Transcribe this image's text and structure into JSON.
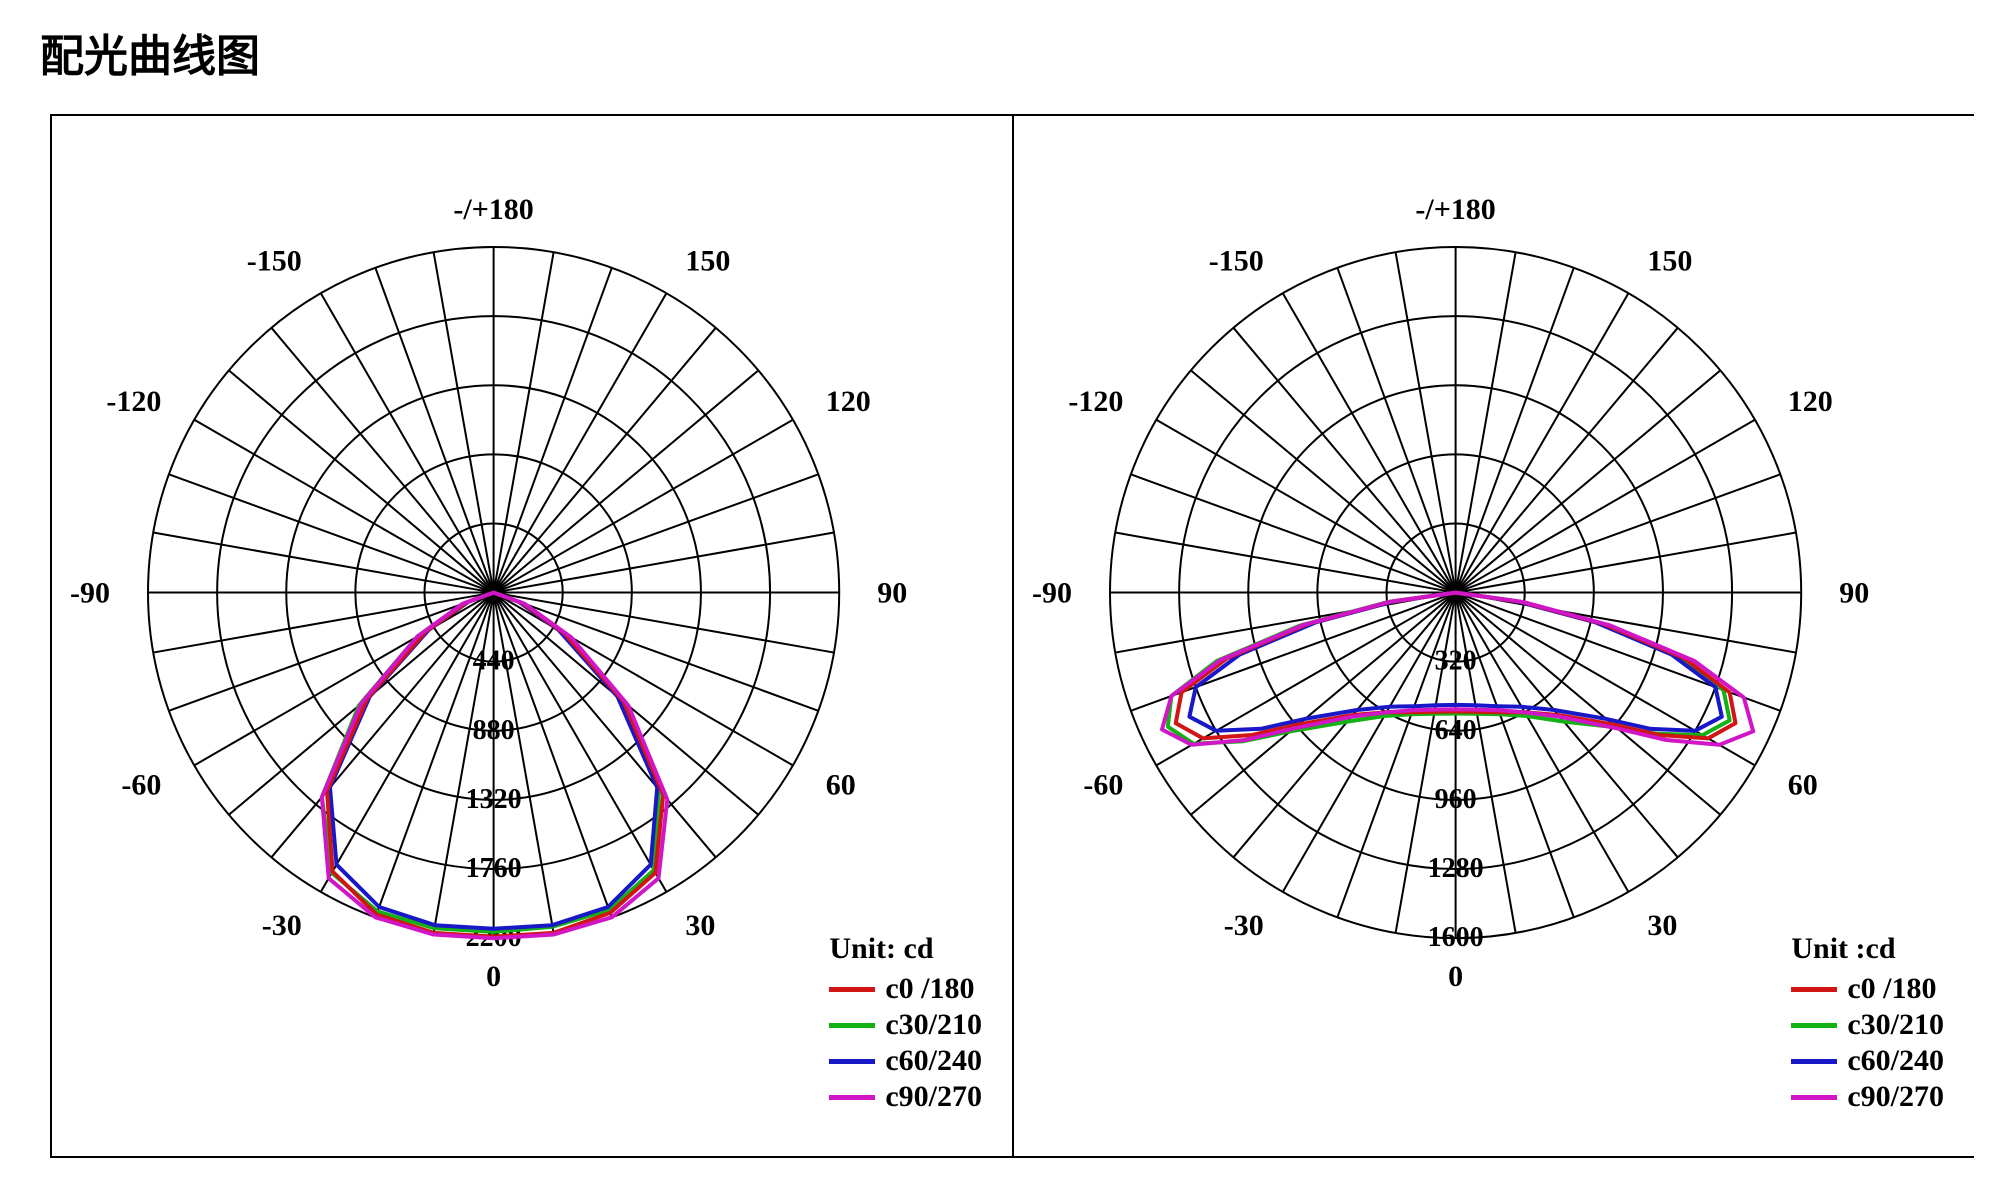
{
  "title": "配光曲线图",
  "background_color": "#ffffff",
  "border_color": "#000000",
  "grid_stroke": "#000000",
  "grid_stroke_width": 2,
  "label_font": "Times New Roman",
  "label_fontsize": 30,
  "label_weight": "bold",
  "angle_labels": [
    {
      "deg": 180,
      "text": "-/+180"
    },
    {
      "deg": 150,
      "text": "150"
    },
    {
      "deg": 120,
      "text": "120"
    },
    {
      "deg": 90,
      "text": "90"
    },
    {
      "deg": 60,
      "text": "60"
    },
    {
      "deg": 30,
      "text": "30"
    },
    {
      "deg": 0,
      "text": "0"
    },
    {
      "deg": -30,
      "text": "-30"
    },
    {
      "deg": -60,
      "text": "-60"
    },
    {
      "deg": -90,
      "text": "-90"
    },
    {
      "deg": -120,
      "text": "-120"
    },
    {
      "deg": -150,
      "text": "-150"
    }
  ],
  "spoke_step_deg": 10,
  "radial_rings": 5,
  "series_colors": {
    "c0": "#d11515",
    "c30": "#13b113",
    "c60": "#1818c8",
    "c90": "#d016c6"
  },
  "series_stroke_width": 4,
  "legend": {
    "unit_label": "Unit: cd",
    "unit_label_alt": "Unit :cd",
    "items": [
      {
        "key": "c0",
        "label": "c0 /180"
      },
      {
        "key": "c30",
        "label": "c30/210"
      },
      {
        "key": "c60",
        "label": "c60/240"
      },
      {
        "key": "c90",
        "label": "c90/270"
      }
    ]
  },
  "chart_left": {
    "type": "polar",
    "max_value": 2200,
    "ring_step": 440,
    "radial_labels": [
      "440",
      "880",
      "1320",
      "1760",
      "2200"
    ],
    "series": {
      "c0": [
        {
          "a": -90,
          "r": 0
        },
        {
          "a": -70,
          "r": 180
        },
        {
          "a": -60,
          "r": 500
        },
        {
          "a": -50,
          "r": 1050
        },
        {
          "a": -40,
          "r": 1650
        },
        {
          "a": -30,
          "r": 2050
        },
        {
          "a": -20,
          "r": 2180
        },
        {
          "a": -10,
          "r": 2200
        },
        {
          "a": 0,
          "r": 2190
        },
        {
          "a": 10,
          "r": 2200
        },
        {
          "a": 20,
          "r": 2170
        },
        {
          "a": 30,
          "r": 2060
        },
        {
          "a": 40,
          "r": 1680
        },
        {
          "a": 50,
          "r": 1080
        },
        {
          "a": 60,
          "r": 520
        },
        {
          "a": 70,
          "r": 190
        },
        {
          "a": 90,
          "r": 0
        }
      ],
      "c30": [
        {
          "a": -90,
          "r": 0
        },
        {
          "a": -70,
          "r": 200
        },
        {
          "a": -60,
          "r": 560
        },
        {
          "a": -50,
          "r": 1120
        },
        {
          "a": -40,
          "r": 1700
        },
        {
          "a": -30,
          "r": 2060
        },
        {
          "a": -20,
          "r": 2160
        },
        {
          "a": -10,
          "r": 2170
        },
        {
          "a": 0,
          "r": 2160
        },
        {
          "a": 10,
          "r": 2160
        },
        {
          "a": 20,
          "r": 2150
        },
        {
          "a": 30,
          "r": 2040
        },
        {
          "a": 40,
          "r": 1640
        },
        {
          "a": 50,
          "r": 1040
        },
        {
          "a": 60,
          "r": 500
        },
        {
          "a": 70,
          "r": 180
        },
        {
          "a": 90,
          "r": 0
        }
      ],
      "c60": [
        {
          "a": -90,
          "r": 0
        },
        {
          "a": -70,
          "r": 170
        },
        {
          "a": -60,
          "r": 480
        },
        {
          "a": -50,
          "r": 1030
        },
        {
          "a": -40,
          "r": 1620
        },
        {
          "a": -30,
          "r": 2000
        },
        {
          "a": -20,
          "r": 2130
        },
        {
          "a": -10,
          "r": 2150
        },
        {
          "a": 0,
          "r": 2140
        },
        {
          "a": 10,
          "r": 2150
        },
        {
          "a": 20,
          "r": 2130
        },
        {
          "a": 30,
          "r": 2000
        },
        {
          "a": 40,
          "r": 1620
        },
        {
          "a": 50,
          "r": 1030
        },
        {
          "a": 60,
          "r": 480
        },
        {
          "a": 70,
          "r": 170
        },
        {
          "a": 90,
          "r": 0
        }
      ],
      "c90": [
        {
          "a": -90,
          "r": 0
        },
        {
          "a": -70,
          "r": 210
        },
        {
          "a": -60,
          "r": 560
        },
        {
          "a": -50,
          "r": 1100
        },
        {
          "a": -40,
          "r": 1700
        },
        {
          "a": -30,
          "r": 2100
        },
        {
          "a": -20,
          "r": 2200
        },
        {
          "a": -10,
          "r": 2210
        },
        {
          "a": 0,
          "r": 2200
        },
        {
          "a": 10,
          "r": 2210
        },
        {
          "a": 20,
          "r": 2200
        },
        {
          "a": 30,
          "r": 2100
        },
        {
          "a": 40,
          "r": 1720
        },
        {
          "a": 50,
          "r": 1120
        },
        {
          "a": 60,
          "r": 570
        },
        {
          "a": 70,
          "r": 210
        },
        {
          "a": 90,
          "r": 0
        }
      ]
    }
  },
  "chart_right": {
    "type": "polar",
    "max_value": 1600,
    "ring_step": 320,
    "radial_labels": [
      "320",
      "640",
      "960",
      "1280",
      "1600"
    ],
    "series": {
      "c0": [
        {
          "a": -90,
          "r": 0
        },
        {
          "a": -82,
          "r": 300
        },
        {
          "a": -78,
          "r": 700
        },
        {
          "a": -74,
          "r": 1100
        },
        {
          "a": -70,
          "r": 1350
        },
        {
          "a": -65,
          "r": 1430
        },
        {
          "a": -60,
          "r": 1350
        },
        {
          "a": -55,
          "r": 1150
        },
        {
          "a": -50,
          "r": 950
        },
        {
          "a": -40,
          "r": 740
        },
        {
          "a": -30,
          "r": 640
        },
        {
          "a": -20,
          "r": 590
        },
        {
          "a": -10,
          "r": 560
        },
        {
          "a": 0,
          "r": 550
        },
        {
          "a": 10,
          "r": 560
        },
        {
          "a": 20,
          "r": 590
        },
        {
          "a": 30,
          "r": 640
        },
        {
          "a": 40,
          "r": 740
        },
        {
          "a": 50,
          "r": 950
        },
        {
          "a": 55,
          "r": 1150
        },
        {
          "a": 60,
          "r": 1350
        },
        {
          "a": 65,
          "r": 1430
        },
        {
          "a": 70,
          "r": 1350
        },
        {
          "a": 74,
          "r": 1100
        },
        {
          "a": 78,
          "r": 700
        },
        {
          "a": 82,
          "r": 300
        },
        {
          "a": 90,
          "r": 0
        }
      ],
      "c30": [
        {
          "a": -90,
          "r": 0
        },
        {
          "a": -82,
          "r": 320
        },
        {
          "a": -78,
          "r": 740
        },
        {
          "a": -74,
          "r": 1150
        },
        {
          "a": -70,
          "r": 1400
        },
        {
          "a": -65,
          "r": 1470
        },
        {
          "a": -60,
          "r": 1400
        },
        {
          "a": -55,
          "r": 1200
        },
        {
          "a": -50,
          "r": 1000
        },
        {
          "a": -40,
          "r": 780
        },
        {
          "a": -30,
          "r": 660
        },
        {
          "a": -20,
          "r": 600
        },
        {
          "a": -10,
          "r": 570
        },
        {
          "a": 0,
          "r": 560
        },
        {
          "a": 10,
          "r": 570
        },
        {
          "a": 20,
          "r": 600
        },
        {
          "a": 30,
          "r": 660
        },
        {
          "a": 40,
          "r": 780
        },
        {
          "a": 50,
          "r": 970
        },
        {
          "a": 55,
          "r": 1140
        },
        {
          "a": 60,
          "r": 1320
        },
        {
          "a": 65,
          "r": 1400
        },
        {
          "a": 70,
          "r": 1320
        },
        {
          "a": 74,
          "r": 1070
        },
        {
          "a": 78,
          "r": 680
        },
        {
          "a": 82,
          "r": 300
        },
        {
          "a": 90,
          "r": 0
        }
      ],
      "c60": [
        {
          "a": -90,
          "r": 0
        },
        {
          "a": -82,
          "r": 280
        },
        {
          "a": -78,
          "r": 660
        },
        {
          "a": -74,
          "r": 1040
        },
        {
          "a": -70,
          "r": 1280
        },
        {
          "a": -65,
          "r": 1360
        },
        {
          "a": -60,
          "r": 1280
        },
        {
          "a": -55,
          "r": 1100
        },
        {
          "a": -50,
          "r": 910
        },
        {
          "a": -40,
          "r": 710
        },
        {
          "a": -30,
          "r": 610
        },
        {
          "a": -20,
          "r": 560
        },
        {
          "a": -10,
          "r": 530
        },
        {
          "a": 0,
          "r": 520
        },
        {
          "a": 10,
          "r": 530
        },
        {
          "a": 20,
          "r": 560
        },
        {
          "a": 30,
          "r": 610
        },
        {
          "a": 40,
          "r": 710
        },
        {
          "a": 50,
          "r": 910
        },
        {
          "a": 55,
          "r": 1100
        },
        {
          "a": 60,
          "r": 1280
        },
        {
          "a": 65,
          "r": 1360
        },
        {
          "a": 70,
          "r": 1280
        },
        {
          "a": 74,
          "r": 1040
        },
        {
          "a": 78,
          "r": 660
        },
        {
          "a": 82,
          "r": 280
        },
        {
          "a": 90,
          "r": 0
        }
      ],
      "c90": [
        {
          "a": -90,
          "r": 0
        },
        {
          "a": -82,
          "r": 310
        },
        {
          "a": -78,
          "r": 720
        },
        {
          "a": -74,
          "r": 1130
        },
        {
          "a": -70,
          "r": 1400
        },
        {
          "a": -65,
          "r": 1500
        },
        {
          "a": -60,
          "r": 1410
        },
        {
          "a": -55,
          "r": 1190
        },
        {
          "a": -50,
          "r": 980
        },
        {
          "a": -40,
          "r": 750
        },
        {
          "a": -30,
          "r": 640
        },
        {
          "a": -20,
          "r": 580
        },
        {
          "a": -10,
          "r": 550
        },
        {
          "a": 0,
          "r": 540
        },
        {
          "a": 10,
          "r": 550
        },
        {
          "a": 20,
          "r": 580
        },
        {
          "a": 30,
          "r": 640
        },
        {
          "a": 40,
          "r": 750
        },
        {
          "a": 50,
          "r": 980
        },
        {
          "a": 55,
          "r": 1190
        },
        {
          "a": 60,
          "r": 1410
        },
        {
          "a": 65,
          "r": 1520
        },
        {
          "a": 70,
          "r": 1420
        },
        {
          "a": 74,
          "r": 1150
        },
        {
          "a": 78,
          "r": 730
        },
        {
          "a": 82,
          "r": 320
        },
        {
          "a": 90,
          "r": 0
        }
      ]
    }
  }
}
